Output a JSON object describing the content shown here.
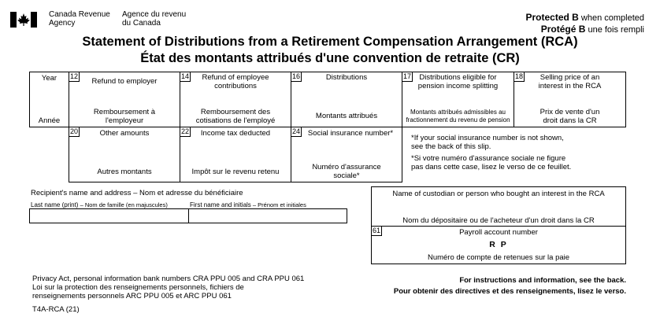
{
  "header": {
    "agency_en_1": "Canada Revenue",
    "agency_en_2": "Agency",
    "agency_fr_1": "Agence du revenu",
    "agency_fr_2": "du Canada",
    "protected_en_bold": "Protected B",
    "protected_en_rest": "when completed",
    "protected_fr_bold": "Protégé B",
    "protected_fr_rest": "une fois rempli",
    "title_en": "Statement of Distributions from a Retirement Compensation Arrangement (RCA)",
    "title_fr": "État des montants attribués d'une convention de retraite (CR)"
  },
  "boxes": {
    "year_en": "Year",
    "year_fr": "Année",
    "box12": {
      "num": "12",
      "en": "Refund to employer",
      "fr_1": "Remboursement à",
      "fr_2": "l'employeur"
    },
    "box14": {
      "num": "14",
      "en_1": "Refund of employee",
      "en_2": "contributions",
      "fr_1": "Remboursement des",
      "fr_2": "cotisations de l'employé"
    },
    "box16": {
      "num": "16",
      "en": "Distributions",
      "fr": "Montants attribués"
    },
    "box17": {
      "num": "17",
      "en_1": "Distributions eligible for",
      "en_2": "pension income splitting",
      "fr_1": "Montants attribués admissibles au",
      "fr_2": "fractionnement du revenu de pension"
    },
    "box18": {
      "num": "18",
      "en_1": "Selling price of an",
      "en_2": "interest in the RCA",
      "fr_1": "Prix de vente d'un",
      "fr_2": "droit dans la CR"
    },
    "box20": {
      "num": "20",
      "en": "Other amounts",
      "fr": "Autres montants"
    },
    "box22": {
      "num": "22",
      "en": "Income tax deducted",
      "fr": "Impôt sur le revenu retenu"
    },
    "box24": {
      "num": "24",
      "en": "Social insurance number*",
      "fr_1": "Numéro d'assurance",
      "fr_2": "sociale*"
    },
    "sin_note_en_1": "*If your social insurance number is not shown,",
    "sin_note_en_2": "see the back of this slip.",
    "sin_note_fr_1": "*Si votre numéro d'assurance sociale ne figure",
    "sin_note_fr_2": "pas dans cette case, lisez le verso de ce feuillet."
  },
  "recipient": {
    "heading": "Recipient's name and address  –  Nom et adresse du bénéficiaire",
    "last_name_en": "Last name (print)",
    "last_name_fr": "–  Nom de famille (en majuscules)",
    "first_name_en": "First name and initials",
    "first_name_fr": "–  Prénom et initiales"
  },
  "custodian": {
    "en": "Name of custodian or person who bought an interest in the RCA",
    "fr": "Nom du dépositaire ou de l'acheteur d'un droit dans la CR"
  },
  "payroll": {
    "num": "61",
    "en": "Payroll account number",
    "rp": "R P",
    "fr": "Numéro de compte de retenues sur la paie"
  },
  "footer": {
    "privacy_1": "Privacy Act, personal information bank numbers CRA PPU 005 and CRA PPU 061",
    "privacy_2": "Loi sur la protection des renseignements personnels, fichiers de",
    "privacy_3": "renseignements personnels ARC PPU 005 et ARC PPU 061",
    "form_id": "T4A-RCA (21)",
    "instr_en": "For instructions and information, see the back.",
    "instr_fr": "Pour obtenir des directives et des renseignements, lisez le verso."
  }
}
